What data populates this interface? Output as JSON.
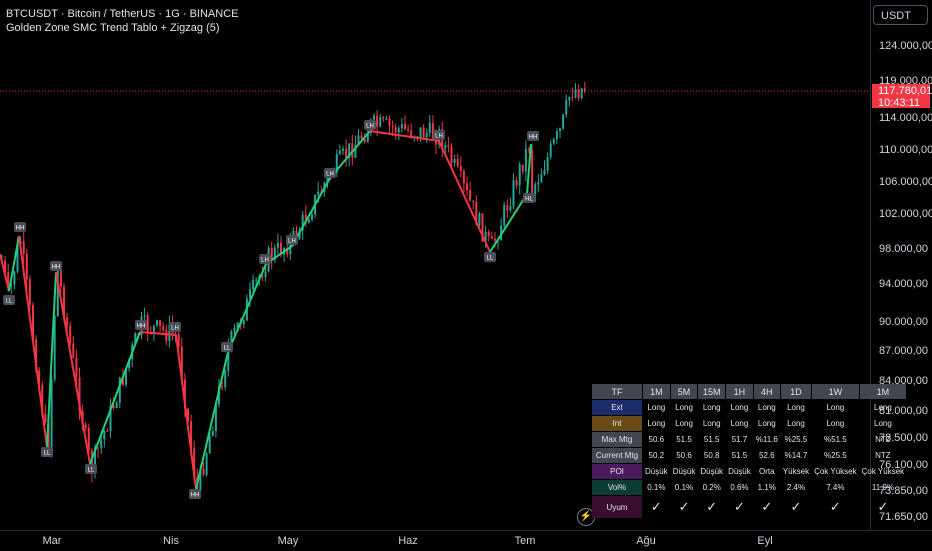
{
  "header": {
    "symbol_line": "BTCUSDT · Bitcoin / TetherUS · 1G · BINANCE",
    "indicator_line": "Golden Zone SMC Trend Tablo + Zigzag (5)"
  },
  "currency_button": "USDT",
  "price_axis": {
    "labels": [
      "124.000,00",
      "119.000,00",
      "114.000,00",
      "110.000,00",
      "106.000,00",
      "102.000,00",
      "98.000,00",
      "94.000,00",
      "90.000,00",
      "87.000,00",
      "84.000,00",
      "81.000,00",
      "78.500,00",
      "76.100,00",
      "73.850,00",
      "71.650,00"
    ],
    "current_price": "117.780,01",
    "countdown": "10:43:11"
  },
  "time_axis": {
    "labels": [
      "Mar",
      "Nis",
      "May",
      "Haz",
      "Tem",
      "Ağu",
      "Eyl"
    ]
  },
  "zigzag_labels": [
    "HH",
    "LL",
    "HH",
    "LL",
    "LL",
    "HH",
    "LH",
    "HH",
    "LL",
    "LH",
    "LH",
    "LH",
    "LH",
    "LH",
    "LL",
    "HH",
    "HL"
  ],
  "colors": {
    "up": "#26a69a",
    "down": "#f23645",
    "zig_up": "#22d07a",
    "zig_down": "#f23645"
  },
  "table": {
    "headers": [
      "TF",
      "1M",
      "5M",
      "15M",
      "1H",
      "4H",
      "1D",
      "1W",
      "1M"
    ],
    "rows": [
      {
        "label": "Ext",
        "label_bg": "#1c2b6b",
        "cls": "long",
        "cells": [
          "Long",
          "Long",
          "Long",
          "Long",
          "Long",
          "Long",
          "Long",
          "Long"
        ]
      },
      {
        "label": "Int",
        "label_bg": "#6b4a15",
        "cls": "long",
        "cells": [
          "Long",
          "Long",
          "Long",
          "Long",
          "Long",
          "Long",
          "Long",
          "Long"
        ]
      },
      {
        "label": "Max Mtg",
        "label_bg": "#434651",
        "cls": "dim",
        "cells": [
          "50.6",
          "51.5",
          "51.5",
          "51.7",
          "%11.6",
          "%25.5",
          "%51.5",
          "NTZ"
        ]
      },
      {
        "label": "Current Mtg",
        "label_bg": "#434651",
        "cls": "long",
        "cells": [
          "50.2",
          "50.6",
          "50.8",
          "51.5",
          "52.6",
          "%14.7",
          "%25.5",
          "NTZ"
        ]
      },
      {
        "label": "POI",
        "label_bg": "#4a1a5a",
        "cls": "low",
        "cells": [
          "Düşük",
          "Düşük",
          "Düşük",
          "Düşük",
          "Orta",
          "Yüksek",
          "Çok Yüksek",
          "Çok Yüksek"
        ]
      },
      {
        "label": "Vol%",
        "label_bg": "#0d3b35",
        "cls": "green",
        "cells": [
          "0.1%",
          "0.1%",
          "0.2%",
          "0.6%",
          "1.1%",
          "2.4%",
          "7.4%",
          "11.9%"
        ]
      },
      {
        "label": "Uyum",
        "label_bg": "#3a0d2e",
        "cls": "green",
        "cells": [
          "✓",
          "✓",
          "✓",
          "✓",
          "✓",
          "✓",
          "✓",
          "✓"
        ]
      }
    ]
  }
}
